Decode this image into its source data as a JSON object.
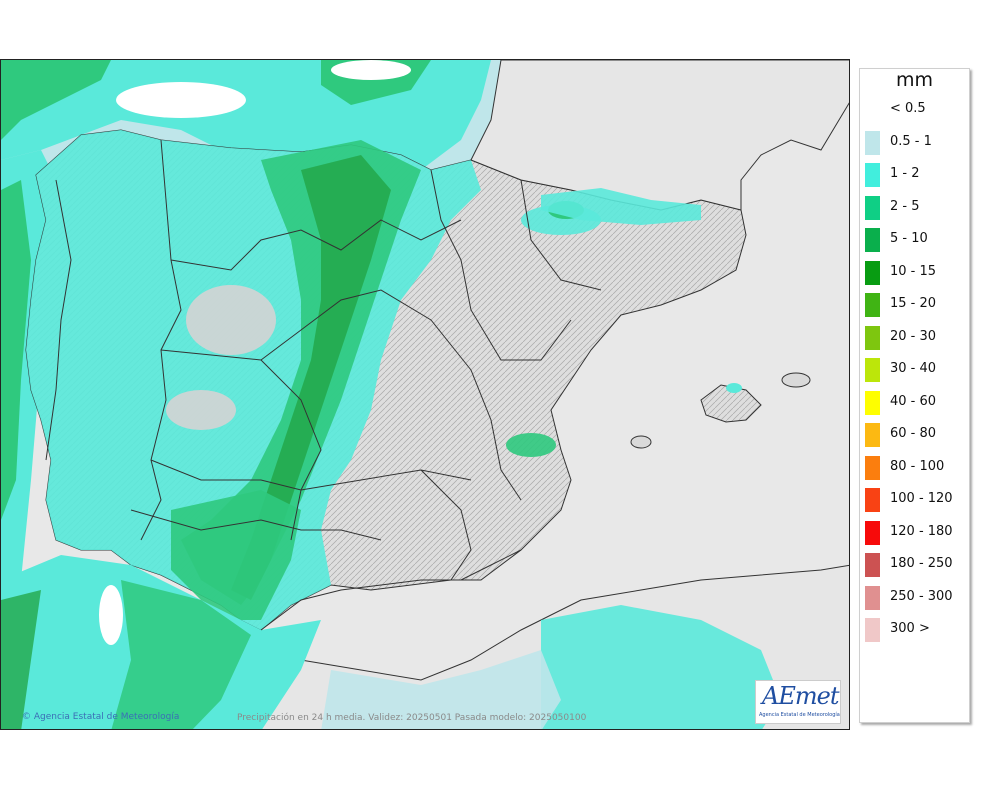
{
  "map": {
    "credit": "Agencia Estatal de Meteorología",
    "caption": "Precipitación en 24 h media. Validez: 20250501 Pasada modelo: 2025050100",
    "logo_text": "AEmet",
    "logo_subtitle": "Agencia Estatal de Meteorología"
  },
  "legend": {
    "unit": "mm",
    "classes": [
      {
        "label": "< 0.5",
        "color": "#ffffff"
      },
      {
        "label": "0.5 - 1",
        "color": "#bfe6ea"
      },
      {
        "label": "1 - 2",
        "color": "#41eedd"
      },
      {
        "label": "2 - 5",
        "color": "#0fcf85"
      },
      {
        "label": "5 - 10",
        "color": "#0aaf4c"
      },
      {
        "label": "10 - 15",
        "color": "#089c12"
      },
      {
        "label": "15 - 20",
        "color": "#40b414"
      },
      {
        "label": "20 - 30",
        "color": "#7ec60f"
      },
      {
        "label": "30 - 40",
        "color": "#bce60a"
      },
      {
        "label": "40 - 60",
        "color": "#fefe00"
      },
      {
        "label": "60 - 80",
        "color": "#fcb912"
      },
      {
        "label": "80 - 100",
        "color": "#fb7e0e"
      },
      {
        "label": "100 - 120",
        "color": "#f94214"
      },
      {
        "label": "120 - 180",
        "color": "#f70a0a"
      },
      {
        "label": "180 - 250",
        "color": "#cc5252"
      },
      {
        "label": "250 - 300",
        "color": "#e09090"
      },
      {
        "label": "300 >",
        "color": "#f0c8c8"
      }
    ]
  },
  "colors": {
    "sea_nodata": "#e8e8e8",
    "land_dry": "#d9d9d9",
    "light_blue": "#bfe6ea",
    "cyan": "#5ae9da",
    "green": "#2fc97e",
    "dark_green": "#23a74a"
  }
}
